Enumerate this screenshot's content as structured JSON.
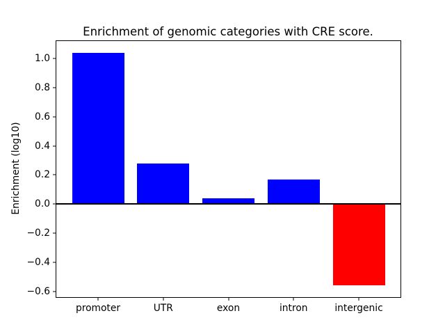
{
  "chart_data": {
    "type": "bar",
    "title": "Enrichment of genomic categories with CRE score.",
    "xlabel": "",
    "ylabel": "Enrichment (log10)",
    "categories": [
      "promoter",
      "UTR",
      "exon",
      "intron",
      "intergenic"
    ],
    "values": [
      1.04,
      0.28,
      0.04,
      0.17,
      -0.56
    ],
    "bar_colors": [
      "#0000ff",
      "#0000ff",
      "#0000ff",
      "#0000ff",
      "#ff0000"
    ],
    "positive_color": "#0000ff",
    "negative_color": "#ff0000",
    "bar_width_fraction": 0.8,
    "ylim": [
      -0.64,
      1.12
    ],
    "xlim": [
      -0.64,
      4.64
    ],
    "yticks": [
      1.0,
      0.8,
      0.6,
      0.4,
      0.2,
      0.0,
      -0.2,
      -0.4,
      -0.6
    ],
    "ytick_labels": [
      "1.0",
      "0.8",
      "0.6",
      "0.4",
      "0.2",
      "0.0",
      "−0.2",
      "−0.4",
      "−0.6"
    ],
    "zero_line": true,
    "grid": false,
    "legend": null
  }
}
